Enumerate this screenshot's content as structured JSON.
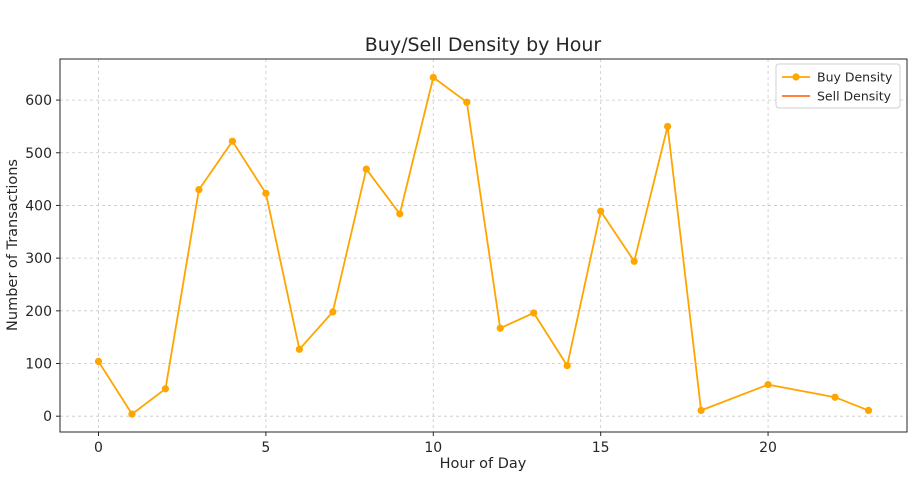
{
  "chart_data": {
    "type": "line",
    "title": "Buy/Sell Density by Hour",
    "xlabel": "Hour of Day",
    "ylabel": "Number of Transactions",
    "xlim": [
      -1.15,
      24.15
    ],
    "ylim": [
      -30,
      678
    ],
    "xticks": [
      0,
      5,
      10,
      15,
      20
    ],
    "yticks": [
      0,
      100,
      200,
      300,
      400,
      500,
      600
    ],
    "grid": true,
    "legend_position": "top-right",
    "series": [
      {
        "name": "Buy Density",
        "color": "#FFA500",
        "marker": "circle",
        "points": [
          {
            "x": 0,
            "y": 104
          },
          {
            "x": 1,
            "y": 4
          },
          {
            "x": 2,
            "y": 52
          },
          {
            "x": 3,
            "y": 430
          },
          {
            "x": 4,
            "y": 522
          },
          {
            "x": 5,
            "y": 423
          },
          {
            "x": 6,
            "y": 127
          },
          {
            "x": 7,
            "y": 198
          },
          {
            "x": 8,
            "y": 469
          },
          {
            "x": 9,
            "y": 384
          },
          {
            "x": 10,
            "y": 643
          },
          {
            "x": 11,
            "y": 596
          },
          {
            "x": 12,
            "y": 167
          },
          {
            "x": 13,
            "y": 196
          },
          {
            "x": 14,
            "y": 96
          },
          {
            "x": 15,
            "y": 389
          },
          {
            "x": 16,
            "y": 294
          },
          {
            "x": 17,
            "y": 550
          },
          {
            "x": 18,
            "y": 11
          },
          {
            "x": 20,
            "y": 60
          },
          {
            "x": 22,
            "y": 36
          },
          {
            "x": 23,
            "y": 11
          }
        ]
      },
      {
        "name": "Sell Density",
        "color": "#FF6F1F",
        "marker": "none",
        "points": []
      }
    ]
  }
}
